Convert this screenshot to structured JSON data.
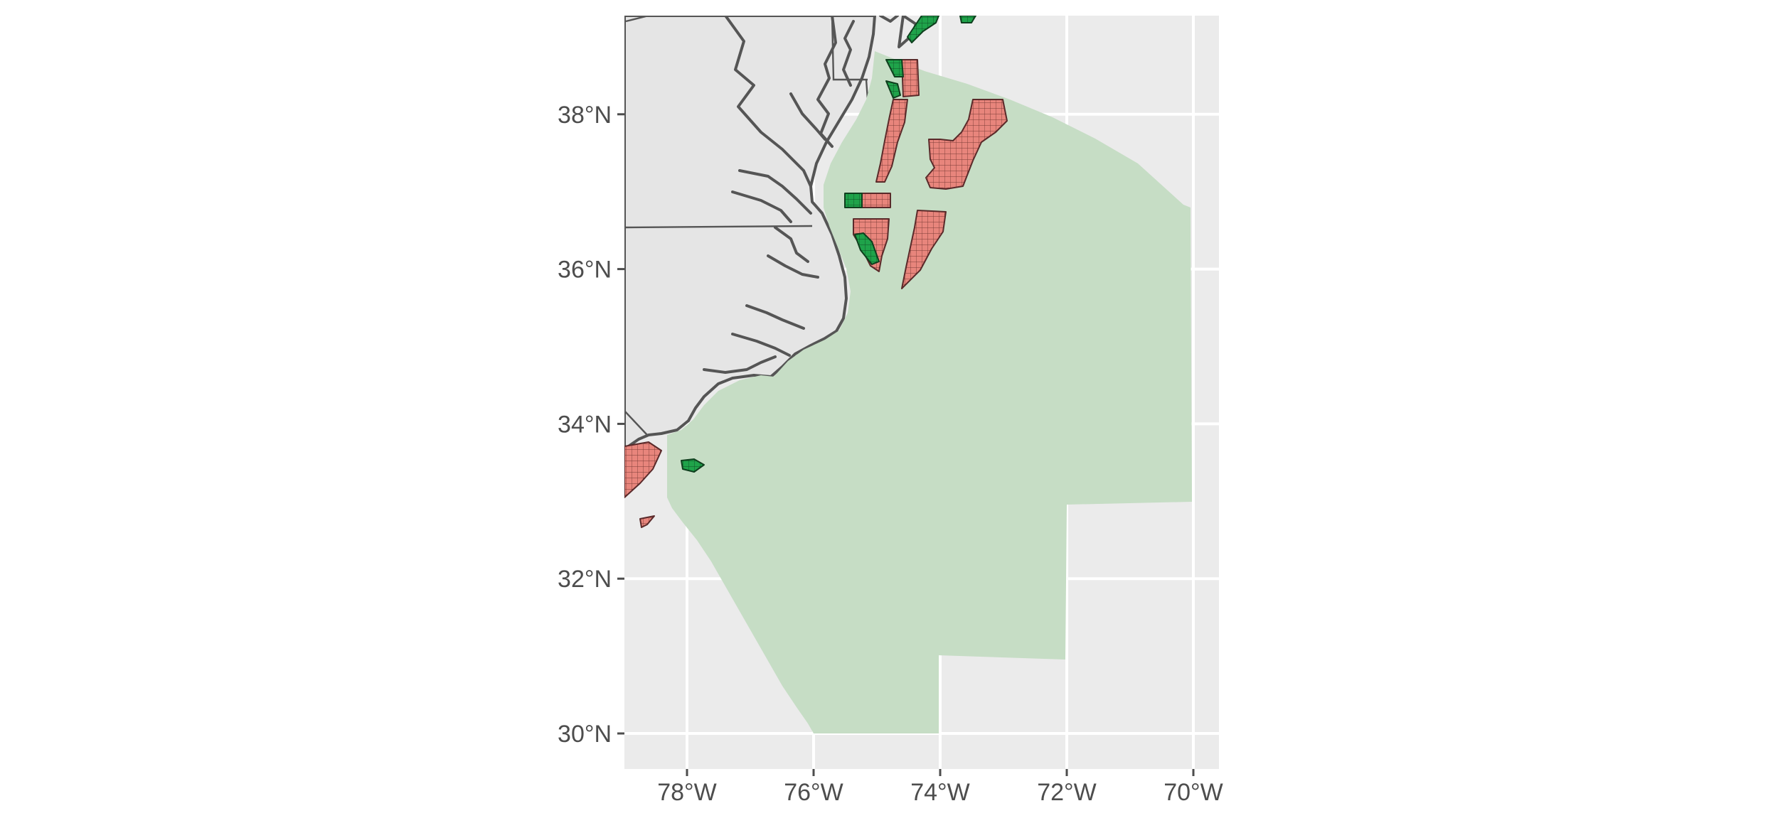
{
  "map": {
    "colors": {
      "panel_background": "#ebebeb",
      "gridline": "#ffffff",
      "land": "#e5e5e5",
      "coast": "#555555",
      "study_area": "#c6ddc5",
      "lease_red": "#e8857c",
      "lease_green": "#1fa34a",
      "lease_outline": "#5a2a2a",
      "axis_text": "#4d4d4d"
    },
    "x_axis": {
      "ticks": [
        {
          "lon": -78,
          "label": "78°W"
        },
        {
          "lon": -76,
          "label": "76°W"
        },
        {
          "lon": -74,
          "label": "74°W"
        },
        {
          "lon": -72,
          "label": "72°W"
        },
        {
          "lon": -70,
          "label": "70°W"
        }
      ]
    },
    "y_axis": {
      "ticks": [
        {
          "lat": 38,
          "label": "38°N"
        },
        {
          "lat": 36,
          "label": "36°N"
        },
        {
          "lat": 34,
          "label": "34°N"
        },
        {
          "lat": 32,
          "label": "32°N"
        },
        {
          "lat": 30,
          "label": "30°N"
        }
      ]
    }
  }
}
